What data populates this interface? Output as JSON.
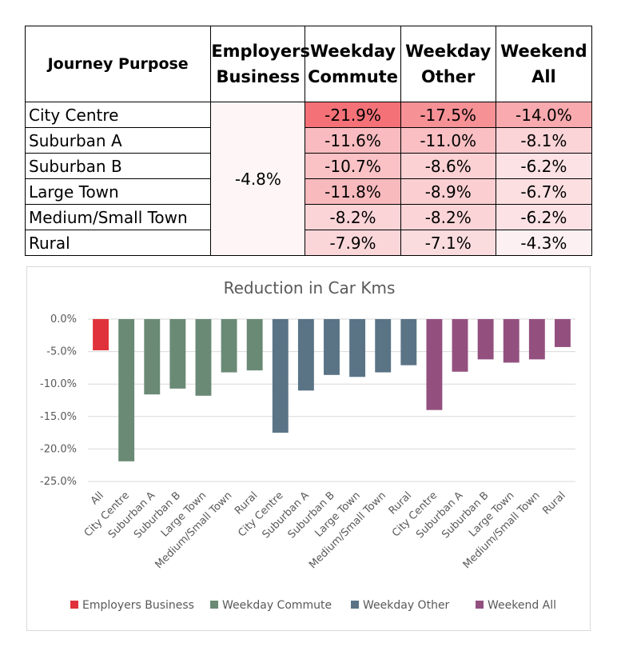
{
  "table": {
    "headers": {
      "purpose": "Journey Purpose",
      "emp": [
        "Employers",
        "Business"
      ],
      "wc": [
        "Weekday",
        "Commute"
      ],
      "wo": [
        "Weekday",
        "Other"
      ],
      "wa": [
        "Weekend",
        "All"
      ]
    },
    "employers_business_all": "-4.8%",
    "rows": [
      {
        "label": "City Centre",
        "wc": "-21.9%",
        "wo": "-17.5%",
        "wa": "-14.0%"
      },
      {
        "label": "Suburban A",
        "wc": "-11.6%",
        "wo": "-11.0%",
        "wa": "-8.1%"
      },
      {
        "label": "Suburban B",
        "wc": "-10.7%",
        "wo": "-8.6%",
        "wa": "-6.2%"
      },
      {
        "label": "Large Town",
        "wc": "-11.8%",
        "wo": "-8.9%",
        "wa": "-6.7%"
      },
      {
        "label": "Medium/Small Town",
        "wc": "-8.2%",
        "wo": "-8.2%",
        "wa": "-6.2%"
      },
      {
        "label": "Rural",
        "wc": "-7.9%",
        "wo": "-7.1%",
        "wa": "-4.3%"
      }
    ]
  },
  "chart_data": {
    "type": "bar",
    "title": "Reduction in Car Kms",
    "xlabel": "",
    "ylabel": "",
    "ylim": [
      -25,
      0
    ],
    "yticks": [
      0,
      -5,
      -10,
      -15,
      -20,
      -25
    ],
    "ytick_labels": [
      "0.0%",
      "-5.0%",
      "-10.0%",
      "-15.0%",
      "-20.0%",
      "-25.0%"
    ],
    "grid": true,
    "legend_position": "bottom",
    "series": [
      {
        "name": "Employers Business",
        "color": "#e0323a",
        "categories": [
          "All"
        ],
        "values": [
          -4.8
        ]
      },
      {
        "name": "Weekday Commute",
        "color": "#6a8a75",
        "categories": [
          "City Centre",
          "Suburban A",
          "Suburban B",
          "Large Town",
          "Medium/Small Town",
          "Rural"
        ],
        "values": [
          -21.9,
          -11.6,
          -10.7,
          -11.8,
          -8.2,
          -7.9
        ]
      },
      {
        "name": "Weekday Other",
        "color": "#5a7486",
        "categories": [
          "City Centre",
          "Suburban A",
          "Suburban B",
          "Large Town",
          "Medium/Small Town",
          "Rural"
        ],
        "values": [
          -17.5,
          -11.0,
          -8.6,
          -8.9,
          -8.2,
          -7.1
        ]
      },
      {
        "name": "Weekend All",
        "color": "#93507f",
        "categories": [
          "City Centre",
          "Suburban A",
          "Suburban B",
          "Large Town",
          "Medium/Small Town",
          "Rural"
        ],
        "values": [
          -14.0,
          -8.1,
          -6.2,
          -6.7,
          -6.2,
          -4.3
        ]
      }
    ]
  }
}
